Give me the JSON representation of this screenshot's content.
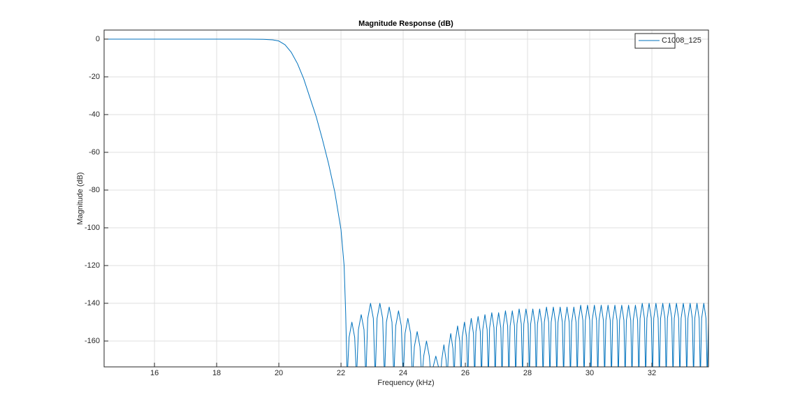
{
  "chart_data": {
    "type": "line",
    "title": "Magnitude Response (dB)",
    "xlabel": "Frequency (kHz)",
    "ylabel": "Magnitude (dB)",
    "xlim": [
      14.38,
      33.82
    ],
    "ylim": [
      -173.7,
      4.8
    ],
    "xticks": [
      16,
      18,
      20,
      22,
      24,
      26,
      28,
      30,
      32
    ],
    "yticks": [
      -160,
      -140,
      -120,
      -100,
      -80,
      -60,
      -40,
      -20,
      0
    ],
    "grid": true,
    "legend": "upper right",
    "x": [
      14.38,
      19,
      19.5,
      19.8,
      20,
      20.2,
      20.4,
      20.6,
      20.8,
      21,
      21.2,
      21.4,
      21.6,
      21.8,
      22,
      22.1,
      22.15,
      22.2,
      22.26,
      22.35,
      22.44,
      22.5,
      22.56,
      22.65,
      22.74,
      22.8,
      22.86,
      22.95,
      23.04,
      23.1,
      23.16,
      23.25,
      23.34,
      23.4,
      23.46,
      23.55,
      23.64,
      23.7,
      23.76,
      23.85,
      23.94,
      24.0,
      24.06,
      24.15,
      24.24,
      24.3,
      24.36,
      24.45,
      24.54,
      24.6,
      24.66,
      24.75,
      24.84,
      24.9,
      24.96,
      25.05,
      25.14,
      25.2,
      25.24,
      25.31,
      25.38,
      25.42,
      25.46,
      25.53,
      25.6,
      25.64,
      25.68,
      25.75,
      25.82,
      25.86,
      25.9,
      25.97,
      26.04,
      26.08,
      26.12,
      26.19,
      26.26,
      26.3,
      26.34,
      26.41,
      26.48,
      26.52,
      26.56,
      26.63,
      26.7,
      26.74,
      26.78,
      26.85,
      26.92,
      26.96,
      27,
      27.07,
      27.14,
      27.18,
      27.22,
      27.29,
      27.36,
      27.4,
      27.44,
      27.51,
      27.58,
      27.62,
      27.66,
      27.73,
      27.8,
      27.84,
      27.88,
      27.95,
      28.02,
      28.06,
      28.1,
      28.17,
      28.24,
      28.28,
      28.32,
      28.39,
      28.46,
      28.5,
      28.54,
      28.61,
      28.68,
      28.72,
      28.76,
      28.83,
      28.9,
      28.94,
      28.98,
      29.05,
      29.12,
      29.16,
      29.2,
      29.27,
      29.34,
      29.38,
      29.42,
      29.49,
      29.56,
      29.6,
      29.64,
      29.71,
      29.78,
      29.82,
      29.86,
      29.93,
      30,
      30.04,
      30.08,
      30.15,
      30.22,
      30.26,
      30.3,
      30.37,
      30.44,
      30.48,
      30.52,
      30.59,
      30.66,
      30.7,
      30.74,
      30.81,
      30.88,
      30.92,
      30.96,
      31.03,
      31.1,
      31.14,
      31.18,
      31.25,
      31.32,
      31.36,
      31.4,
      31.47,
      31.54,
      31.58,
      31.62,
      31.69,
      31.76,
      31.8,
      31.84,
      31.91,
      31.98,
      32.02,
      32.06,
      32.13,
      32.2,
      32.24,
      32.28,
      32.35,
      32.42,
      32.46,
      32.5,
      32.57,
      32.64,
      32.68,
      32.72,
      32.79,
      32.86,
      32.9,
      32.94,
      33.01,
      33.08,
      33.12,
      33.16,
      33.23,
      33.3,
      33.34,
      33.38,
      33.45,
      33.52,
      33.56,
      33.6,
      33.67,
      33.74,
      33.78,
      33.82
    ],
    "series": [
      {
        "name": "C1008_125",
        "color": "#0072bd",
        "values": [
          0,
          0,
          -0.1,
          -0.4,
          -1,
          -3,
          -7,
          -13,
          -21,
          -31,
          -41,
          -53,
          -66,
          -81,
          -101,
          -120,
          -145,
          -180,
          -158,
          -150,
          -158,
          -180,
          -154,
          -146,
          -154,
          -180,
          -148,
          -140,
          -148,
          -180,
          -148,
          -140,
          -148,
          -180,
          -150,
          -142,
          -150,
          -180,
          -152,
          -144,
          -152,
          -180,
          -156,
          -148,
          -156,
          -180,
          -163,
          -155,
          -163,
          -180,
          -168,
          -160,
          -168,
          -180,
          -174,
          -168,
          -174,
          -180,
          -170,
          -162,
          -170,
          -180,
          -164,
          -156,
          -164,
          -180,
          -160,
          -152,
          -160,
          -180,
          -158,
          -150,
          -158,
          -180,
          -156,
          -148,
          -156,
          -180,
          -155,
          -147,
          -155,
          -180,
          -154,
          -146,
          -154,
          -180,
          -153,
          -145,
          -153,
          -180,
          -153,
          -145,
          -153,
          -180,
          -152,
          -144,
          -152,
          -180,
          -152,
          -144,
          -152,
          -180,
          -151,
          -143,
          -151,
          -180,
          -151,
          -143,
          -151,
          -180,
          -151,
          -143,
          -151,
          -180,
          -151,
          -143,
          -151,
          -180,
          -150,
          -142,
          -150,
          -180,
          -150,
          -142,
          -150,
          -180,
          -150,
          -142,
          -150,
          -180,
          -150,
          -142,
          -150,
          -180,
          -150,
          -142,
          -150,
          -180,
          -149,
          -141,
          -149,
          -180,
          -149,
          -141,
          -149,
          -180,
          -149,
          -141,
          -149,
          -180,
          -149,
          -141,
          -149,
          -180,
          -149,
          -141,
          -149,
          -180,
          -149,
          -141,
          -149,
          -180,
          -149,
          -141,
          -149,
          -180,
          -149,
          -141,
          -149,
          -180,
          -149,
          -141,
          -149,
          -180,
          -148,
          -140,
          -148,
          -180,
          -148,
          -140,
          -148,
          -180,
          -148,
          -140,
          -148,
          -180,
          -148,
          -140,
          -148,
          -180,
          -148,
          -140,
          -148,
          -180,
          -148,
          -140,
          -148,
          -180,
          -148,
          -140,
          -148,
          -180,
          -148,
          -140,
          -148,
          -180,
          -148,
          -140,
          -148,
          -180,
          -148,
          -140,
          -148,
          -180,
          -150
        ]
      }
    ]
  }
}
